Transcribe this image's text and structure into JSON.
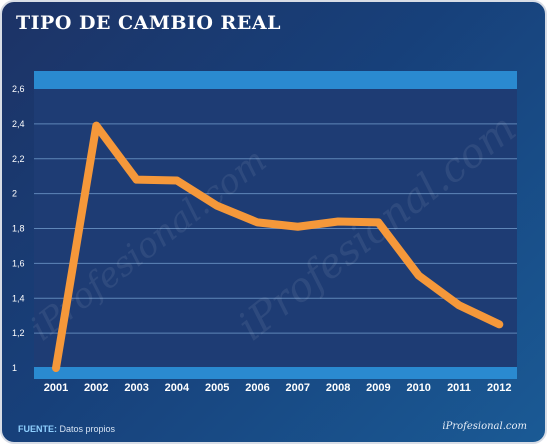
{
  "header": {
    "title": "TIPO DE CAMBIO REAL"
  },
  "footer": {
    "source_label": "FUENTE:",
    "source_text": "Datos propios",
    "brand": "iProfesional.com"
  },
  "watermark": {
    "text": "iProfesional.com"
  },
  "colors": {
    "line": "#f5983a",
    "plot_bg": "#1e3c74",
    "band": "#2a8ad0",
    "grid": "#5f86b8"
  },
  "chart_data": {
    "type": "line",
    "title": "TIPO DE CAMBIO REAL",
    "xlabel": "",
    "ylabel": "",
    "x": [
      "2001",
      "2002",
      "2003",
      "2004",
      "2005",
      "2006",
      "2007",
      "2008",
      "2009",
      "2010",
      "2011",
      "2012"
    ],
    "series": [
      {
        "values": [
          1.0,
          2.39,
          2.08,
          2.075,
          1.93,
          1.835,
          1.81,
          1.84,
          1.835,
          1.53,
          1.36,
          1.25
        ]
      }
    ],
    "ylim": [
      1,
      2.6
    ],
    "yticks": [
      "1",
      "1,2",
      "1,4",
      "1,6",
      "1,8",
      "2",
      "2,2",
      "2,4",
      "2,6"
    ],
    "grid": true,
    "legend": "none"
  }
}
